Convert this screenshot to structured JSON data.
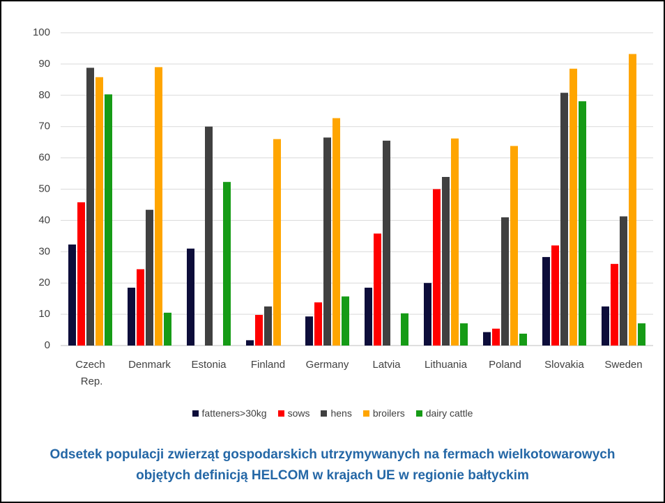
{
  "chart_data": {
    "type": "bar",
    "title": "Odsetek populacji zwierząt gospodarskich utrzymywanych na fermach wielkotowarowych objętych definicją HELCOM w krajach UE w regionie bałtyckim",
    "categories": [
      "Czech Rep.",
      "Denmark",
      "Estonia",
      "Finland",
      "Germany",
      "Latvia",
      "Lithuania",
      "Poland",
      "Slovakia",
      "Sweden"
    ],
    "series": [
      {
        "name": "fatteners>30kg",
        "color": "#0d0d3a",
        "values": [
          32.3,
          18.5,
          31.0,
          1.7,
          9.3,
          18.5,
          20.0,
          4.3,
          28.3,
          12.5
        ]
      },
      {
        "name": "sows",
        "color": "#ff0000",
        "values": [
          45.8,
          24.4,
          null,
          9.8,
          13.8,
          35.8,
          50.0,
          5.4,
          32.0,
          26.1
        ]
      },
      {
        "name": "hens",
        "color": "#404040",
        "values": [
          88.8,
          43.4,
          70.0,
          12.5,
          66.5,
          65.5,
          53.9,
          41.0,
          80.8,
          41.3
        ]
      },
      {
        "name": "broilers",
        "color": "#ffa500",
        "values": [
          85.8,
          89.0,
          null,
          66.0,
          72.7,
          null,
          66.2,
          63.8,
          88.5,
          93.2
        ]
      },
      {
        "name": "dairy cattle",
        "color": "#169b16",
        "values": [
          80.3,
          10.5,
          52.3,
          null,
          15.7,
          10.3,
          7.1,
          3.8,
          78.1,
          7.1
        ]
      }
    ],
    "ylim": [
      0,
      100
    ],
    "yticks": [
      0,
      10,
      20,
      30,
      40,
      50,
      60,
      70,
      80,
      90,
      100
    ],
    "grid": true,
    "legend": "bottom"
  }
}
